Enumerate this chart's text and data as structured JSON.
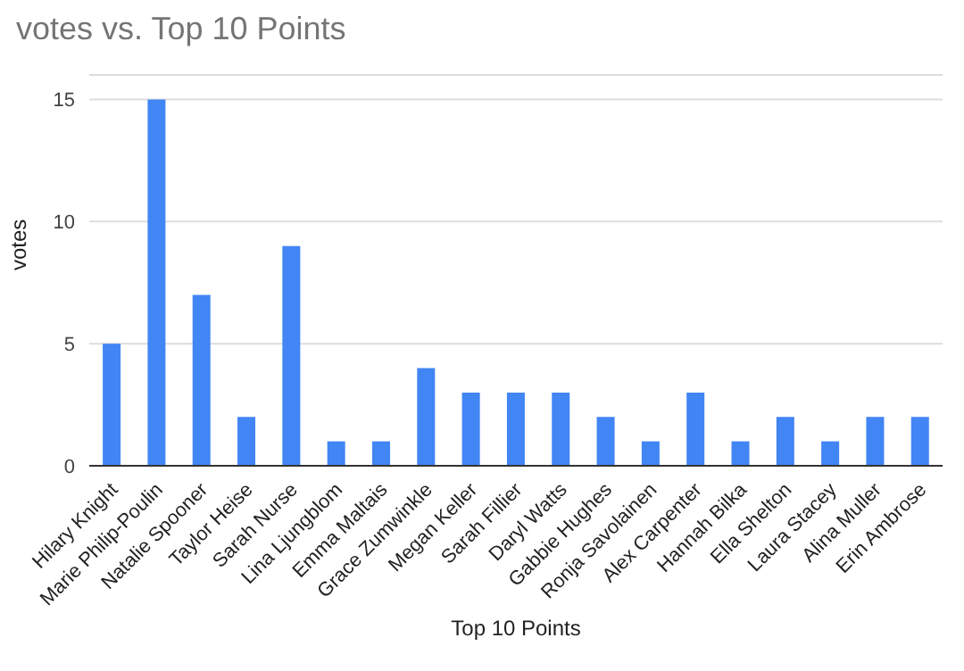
{
  "chart_data": {
    "type": "bar",
    "title": "votes vs. Top 10 Points",
    "xlabel": "Top 10 Points",
    "ylabel": "votes",
    "categories": [
      "Hilary Knight",
      "Marie Philip-Poulin",
      "Natalie Spooner",
      "Taylor Heise",
      "Sarah Nurse",
      "Lina Ljungblom",
      "Emma Maltais",
      "Grace Zumwinkle",
      "Megan Keller",
      "Sarah Fillier",
      "Daryl Watts",
      "Gabbie Hughes",
      "Ronja Savolainen",
      "Alex Carpenter",
      "Hannah Bilka",
      "Ella Shelton",
      "Laura Stacey",
      "Alina Muller",
      "Erin Ambrose"
    ],
    "values": [
      5,
      15,
      7,
      2,
      9,
      1,
      1,
      4,
      3,
      3,
      3,
      2,
      1,
      3,
      1,
      2,
      1,
      2,
      2
    ],
    "color": "#4285f4",
    "ylim": [
      0,
      16
    ],
    "yticks": [
      0,
      5,
      10,
      15
    ],
    "grid": "y",
    "legend": false
  }
}
